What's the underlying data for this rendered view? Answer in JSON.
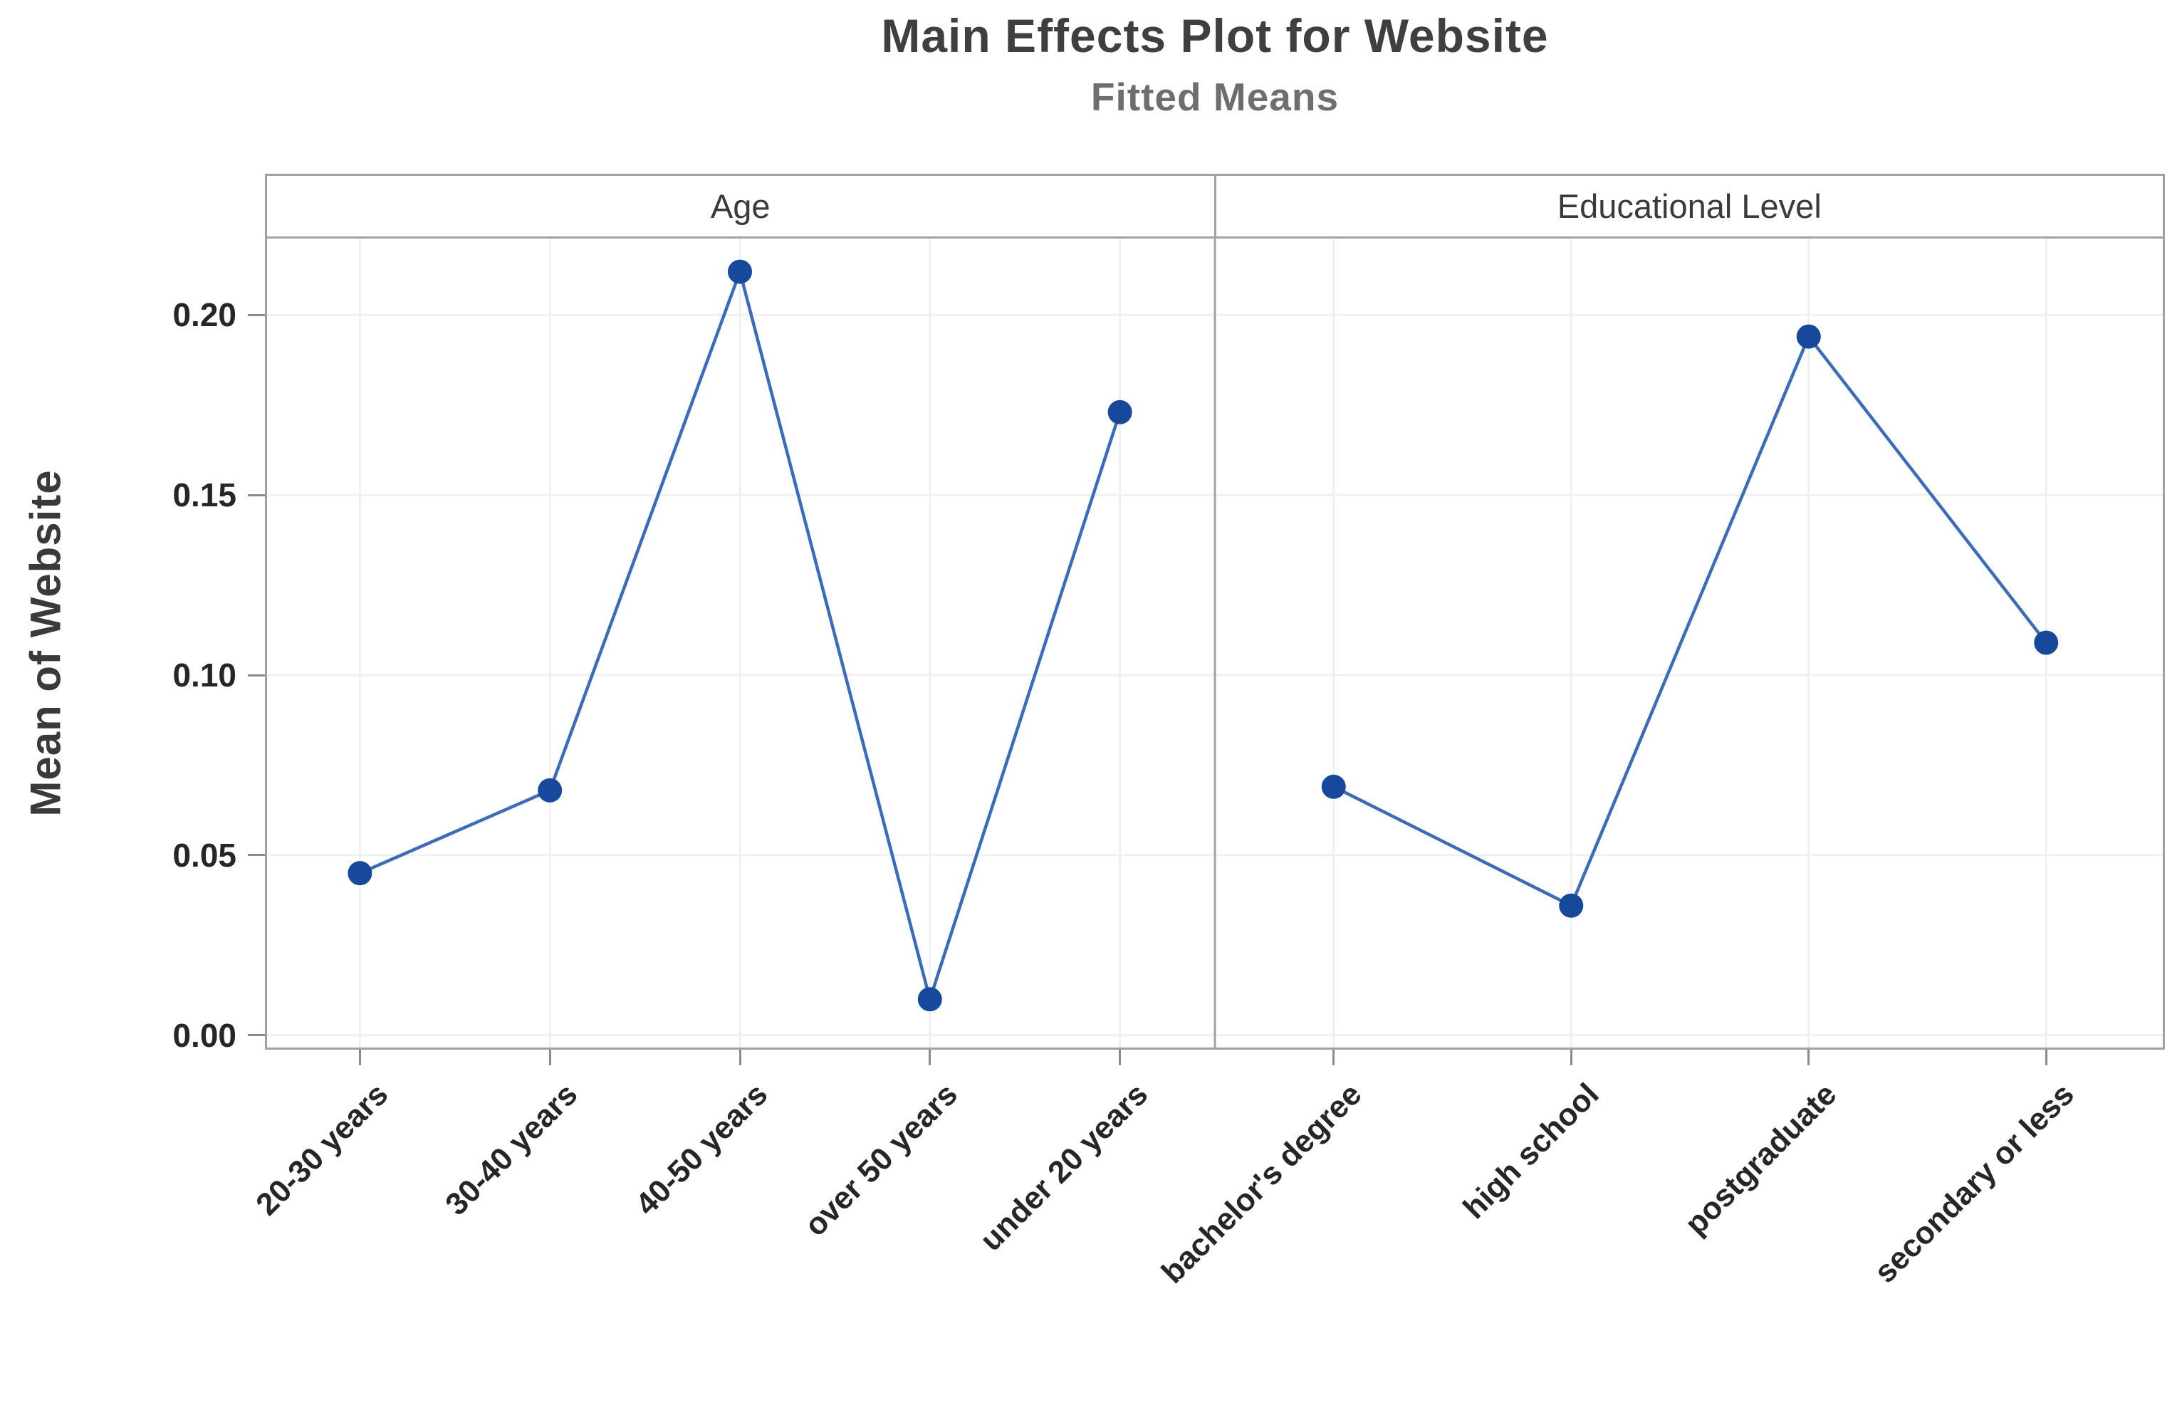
{
  "chart_data": {
    "type": "line",
    "title": "Main Effects Plot for Website",
    "subtitle": "Fitted Means",
    "ylabel": "Mean of Website",
    "xlabel": "",
    "legend": "none",
    "grid": "on",
    "ylim": [
      -0.004,
      0.2218
    ],
    "yticks": [
      0.0,
      0.05,
      0.1,
      0.15,
      0.2
    ],
    "ytick_labels": [
      "0.00",
      "0.05",
      "0.10",
      "0.15",
      "0.20"
    ],
    "panels": [
      {
        "label": "Age",
        "categories": [
          "20-30 years",
          "30-40 years",
          "40-50 years",
          "over 50 years",
          "under 20 years"
        ],
        "values": [
          0.045,
          0.068,
          0.212,
          0.01,
          0.173
        ]
      },
      {
        "label": "Educational Level",
        "categories": [
          "bachelor's degree",
          "high school",
          "postgraduate",
          "secondary or less"
        ],
        "values": [
          0.069,
          0.036,
          0.194,
          0.109
        ]
      }
    ],
    "colors": {
      "line": "#3a6cba",
      "marker": "#16489c",
      "grid": "#f0f0f0",
      "border": "#a1a1a1",
      "tick": "#8a8a8a",
      "title": "#3f3f3f",
      "subtitle": "#6e6e6e",
      "axis_text": "#262626",
      "header_text": "#3a3a3a"
    }
  }
}
